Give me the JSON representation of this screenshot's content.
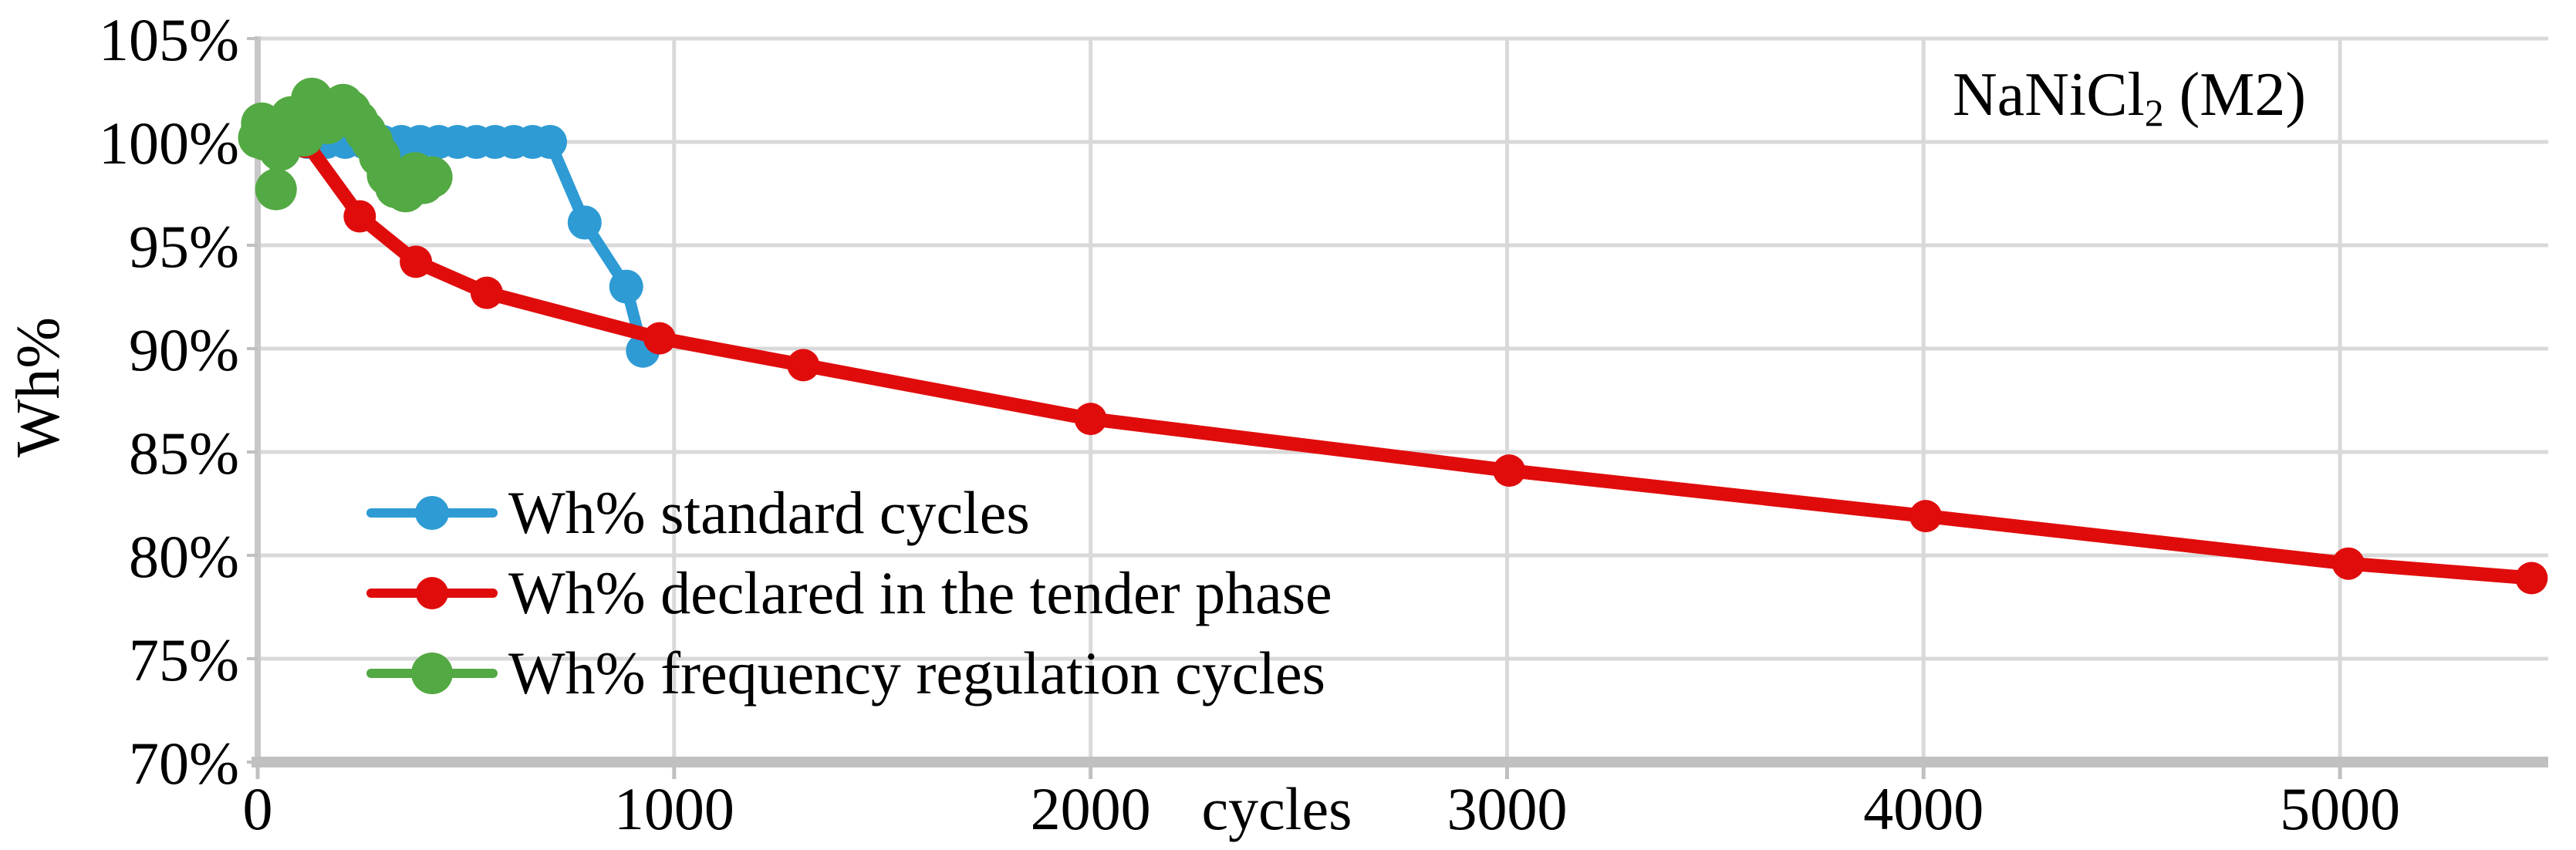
{
  "page": {
    "background": "#FFFFFF"
  },
  "chart_data": {
    "type": "line",
    "xlabel": "cycles",
    "ylabel": "Wh%",
    "annotation": {
      "prefix": "NaNiCl",
      "sub": "2",
      "suffix": " (M2)"
    },
    "xlim": [
      0,
      5500
    ],
    "ylim": [
      70,
      105
    ],
    "grid": true,
    "legend_position": "inside-bottom-left",
    "x_ticks": [
      0,
      1000,
      2000,
      3000,
      4000,
      5000
    ],
    "x_tick_labels": [
      "0",
      "1000",
      "2000",
      "3000",
      "4000",
      "5000"
    ],
    "y_ticks": [
      105,
      100,
      95,
      90,
      85,
      80,
      75,
      70
    ],
    "y_tick_labels": [
      "105%",
      "100%",
      "95%",
      "90%",
      "85%",
      "80%",
      "75%",
      "70%"
    ],
    "style": {
      "grid_color": "#D9D9D9",
      "axis_color": "#C0C0C0",
      "text_color": "#000000"
    },
    "series": [
      {
        "name": "Wh% standard cycles",
        "color": "#2E9BD5",
        "line_width": 15,
        "marker_radius": 22,
        "points": [
          [
            30,
            100
          ],
          [
            75,
            100
          ],
          [
            120,
            100
          ],
          [
            165,
            100
          ],
          [
            210,
            100
          ],
          [
            255,
            100
          ],
          [
            300,
            100
          ],
          [
            345,
            100
          ],
          [
            390,
            100
          ],
          [
            435,
            100
          ],
          [
            480,
            100
          ],
          [
            525,
            100
          ],
          [
            570,
            100
          ],
          [
            615,
            100
          ],
          [
            660,
            100
          ],
          [
            702,
            100
          ],
          [
            785,
            96.1
          ],
          [
            885,
            93.0
          ],
          [
            925,
            89.9
          ]
        ]
      },
      {
        "name": "Wh% declared in the tender phase",
        "color": "#E00C0C",
        "line_width": 18,
        "marker_radius": 21,
        "points": [
          [
            115,
            100
          ],
          [
            245,
            96.4
          ],
          [
            380,
            94.2
          ],
          [
            550,
            92.7
          ],
          [
            965,
            90.5
          ],
          [
            1310,
            89.2
          ],
          [
            2000,
            86.6
          ],
          [
            3005,
            84.1
          ],
          [
            4005,
            81.9
          ],
          [
            5020,
            79.6
          ],
          [
            5460,
            78.9
          ]
        ]
      },
      {
        "name": "Wh% frequency regulation cycles",
        "color": "#53A943",
        "line_width": 13,
        "marker_radius": 27,
        "points": [
          [
            3,
            100.2
          ],
          [
            10,
            100.9
          ],
          [
            18,
            100.1
          ],
          [
            27,
            100.6
          ],
          [
            36,
            100.0
          ],
          [
            44,
            97.7
          ],
          [
            53,
            99.6
          ],
          [
            65,
            100.5
          ],
          [
            80,
            101.2
          ],
          [
            95,
            100.8
          ],
          [
            110,
            100.3
          ],
          [
            130,
            102.1
          ],
          [
            150,
            101.4
          ],
          [
            168,
            100.9
          ],
          [
            185,
            101.3
          ],
          [
            205,
            101.8
          ],
          [
            222,
            101.5
          ],
          [
            240,
            101.0
          ],
          [
            258,
            100.5
          ],
          [
            275,
            100.0
          ],
          [
            293,
            99.3
          ],
          [
            312,
            98.4
          ],
          [
            332,
            97.8
          ],
          [
            355,
            97.6
          ],
          [
            378,
            98.5
          ],
          [
            398,
            98.0
          ],
          [
            418,
            98.3
          ]
        ]
      }
    ]
  }
}
